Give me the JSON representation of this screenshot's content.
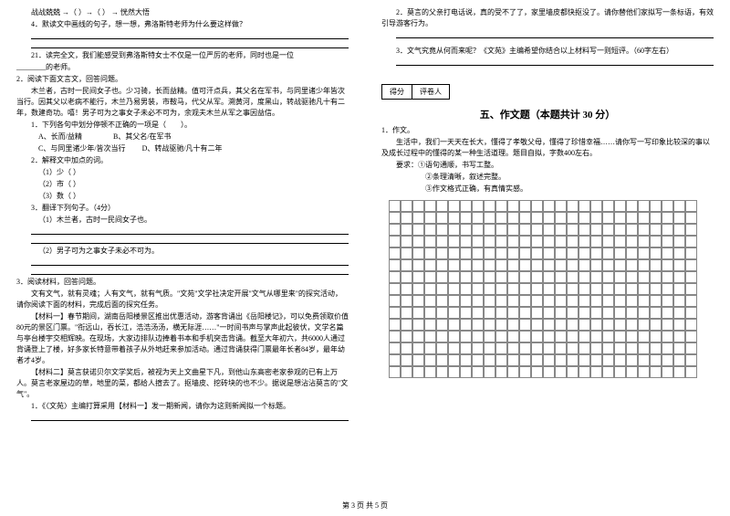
{
  "left": {
    "l1": "战战兢兢 →（          ）→（          ） → 恍然大悟",
    "l2": "4．默读文中画线的句子，想一想，弗洛斯特老师为什么要这样做？",
    "l3": "21．读完全文，我们能感受到弗洛斯特女士不仅是一位严厉的老师，同时也是一位",
    "l4": "________的老师。",
    "q2title": "2．阅读下面文言文，回答问题。",
    "passage1": "木兰者，古时一民间女子也。少习骑，长而益精。值可汗点兵，其父名在军书，与同里诸少年皆次当行。因其父以老病不能行，木兰乃易男装，市鞍马，代父从军。溯黄河，度黑山，转战驱驰凡十有二年，数建奇功。嘻！男子可为之事女子未必不可为，余观夫木兰从军之事因益信。",
    "q2_1": "1．下列各句中划分停顿不正确的一项是（　　）。",
    "optA": "A、长而/益精",
    "optB": "B、其父名/在军书",
    "optC": "C、与同里诸少年/皆次当行",
    "optD": "D、转战驱驰/凡十有二年",
    "q2_2": "2．解释文中加点的词。",
    "q2_2a": "（1）少（            ）",
    "q2_2b": "（2）市（            ）",
    "q2_2c": "（3）数（            ）",
    "q2_3": "3．翻译下列句子。（4分）",
    "q2_3a": "（1）木兰者，古时一民间女子也。",
    "q2_3b": "（2）男子可为之事女子未必不可为。",
    "q3title": "3．阅读材料，回答问题。",
    "p3_1": "文有文气，就有灵魂；人有文气，就有气质。\"文苑\"文学社决定开展\"文气从哪里来\"的探究活动，请你阅读下面的材料，完成后面的探究任务。",
    "p3_2": "【材料一】春节期间，湖南岳阳楼景区推出优惠活动，游客背诵出《岳阳楼记》，可以免费领取价值80元的景区门票。\"衔远山，吞长江，浩浩汤汤，横无际涯……\"一时间书声与掌声此起彼伏，文学名篇与亭台楼宇交相辉映。在现场，大家边排队边捧着书本和手机突击背诵。截至大年初六，共6000人通过背诵登上了楼，好多家长特意带着孩子从外地赶来参加活动。通过背诵获得门票最年长者84岁，最年幼者才4岁。",
    "p3_3": "【材料二】莫言获诺贝尔文学奖后，被视为天上文曲星下凡，到他山东高密老家参观的已有上万人。莫言老家屋边的草，地里的菜，都给人揎去了。抠墙皮、挖砖块的也不少。据说是想沾沾莫言的\"文气\"。",
    "q3_1": "1．《〈文苑〉主编打算采用【材料一】发一期新闻，请你为这则新闻拟一个标题。"
  },
  "right": {
    "r1": "2．莫言的父亲打电话说，真的受不了了，家里墙皮都快抠没了。请你替他们家拟写一条标语，有效引导游客行为。",
    "r2": "3．文气究竟从何而来呢？《文苑》主编希望你结合以上材料写一则短评。（60字左右）",
    "scoreLabel1": "得分",
    "scoreLabel2": "评卷人",
    "sectionTitle": "五、作文题（本题共计 30 分）",
    "w1": "1．作文。",
    "w2": "生活中，我们一天天在长大，懂得了孝敬父母，懂得了珍惜幸福……请你写一写印象比较深的事以及成长过程中的懂得的某一种生活道理。题目自拟，字数400左右。",
    "w3": "要求：①语句通顺，书写工整。",
    "w4": "②条理清晰，叙述完整。",
    "w5": "③作文格式正确，有真情实感。"
  },
  "footer": "第 3 页 共 5 页",
  "grid": {
    "rows": 15,
    "cols": 26
  }
}
